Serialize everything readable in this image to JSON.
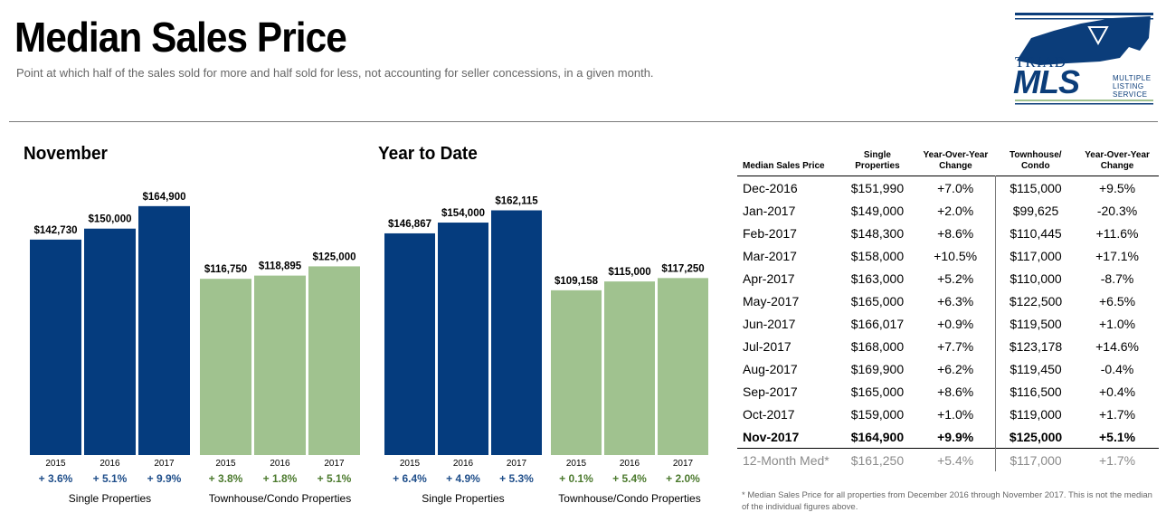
{
  "header": {
    "title": "Median Sales Price",
    "subtitle": "Point at which half of the sales sold for more and half sold for less, not accounting for seller concessions, in a given month."
  },
  "logo": {
    "triad": "TRIAD",
    "mls": "MLS",
    "line1": "MULTIPLE",
    "line2": "LISTING",
    "line3": "SERVICE"
  },
  "colors": {
    "single": "#053c7e",
    "townhouse": "#a0c28f",
    "change": "#1f4e8a",
    "change_green": "#4c7a2e"
  },
  "chart_data": [
    {
      "type": "bar",
      "title": "November",
      "categories": [
        "2015",
        "2016",
        "2017"
      ],
      "ylim": [
        0,
        175000
      ],
      "groups": [
        {
          "name": "Single Properties",
          "values": [
            142730,
            150000,
            164900
          ],
          "labels": [
            "$142,730",
            "$150,000",
            "$164,900"
          ],
          "changes": [
            "+ 3.6%",
            "+ 5.1%",
            "+ 9.9%"
          ]
        },
        {
          "name": "Townhouse/Condo Properties",
          "values": [
            116750,
            118895,
            125000
          ],
          "labels": [
            "$116,750",
            "$118,895",
            "$125,000"
          ],
          "changes": [
            "+ 3.8%",
            "+ 1.8%",
            "+ 5.1%"
          ]
        }
      ]
    },
    {
      "type": "bar",
      "title": "Year to Date",
      "categories": [
        "2015",
        "2016",
        "2017"
      ],
      "ylim": [
        0,
        175000
      ],
      "groups": [
        {
          "name": "Single Properties",
          "values": [
            146867,
            154000,
            162115
          ],
          "labels": [
            "$146,867",
            "$154,000",
            "$162,115"
          ],
          "changes": [
            "+ 6.4%",
            "+ 4.9%",
            "+ 5.3%"
          ]
        },
        {
          "name": "Townhouse/Condo Properties",
          "values": [
            109158,
            115000,
            117250
          ],
          "labels": [
            "$109,158",
            "$115,000",
            "$117,250"
          ],
          "changes": [
            "+ 0.1%",
            "+ 5.4%",
            "+ 2.0%"
          ]
        }
      ]
    },
    {
      "type": "table",
      "columns": [
        "Median Sales Price",
        "Single Properties",
        "Year-Over-Year Change",
        "Townhouse/ Condo",
        "Year-Over-Year Change"
      ],
      "rows": [
        [
          "Dec-2016",
          "$151,990",
          "+7.0%",
          "$115,000",
          "+9.5%"
        ],
        [
          "Jan-2017",
          "$149,000",
          "+2.0%",
          "$99,625",
          "-20.3%"
        ],
        [
          "Feb-2017",
          "$148,300",
          "+8.6%",
          "$110,445",
          "+11.6%"
        ],
        [
          "Mar-2017",
          "$158,000",
          "+10.5%",
          "$117,000",
          "+17.1%"
        ],
        [
          "Apr-2017",
          "$163,000",
          "+5.2%",
          "$110,000",
          "-8.7%"
        ],
        [
          "May-2017",
          "$165,000",
          "+6.3%",
          "$122,500",
          "+6.5%"
        ],
        [
          "Jun-2017",
          "$166,017",
          "+0.9%",
          "$119,500",
          "+1.0%"
        ],
        [
          "Jul-2017",
          "$168,000",
          "+7.7%",
          "$123,178",
          "+14.6%"
        ],
        [
          "Aug-2017",
          "$169,900",
          "+6.2%",
          "$119,450",
          "-0.4%"
        ],
        [
          "Sep-2017",
          "$165,000",
          "+8.6%",
          "$116,500",
          "+0.4%"
        ],
        [
          "Oct-2017",
          "$159,000",
          "+1.0%",
          "$119,000",
          "+1.7%"
        ],
        [
          "Nov-2017",
          "$164,900",
          "+9.9%",
          "$125,000",
          "+5.1%"
        ]
      ],
      "summary": [
        "12-Month Med*",
        "$161,250",
        "+5.4%",
        "$117,000",
        "+1.7%"
      ],
      "footnote": "* Median Sales Price for all properties from December 2016 through November 2017. This is not the median of the individual figures above."
    }
  ]
}
